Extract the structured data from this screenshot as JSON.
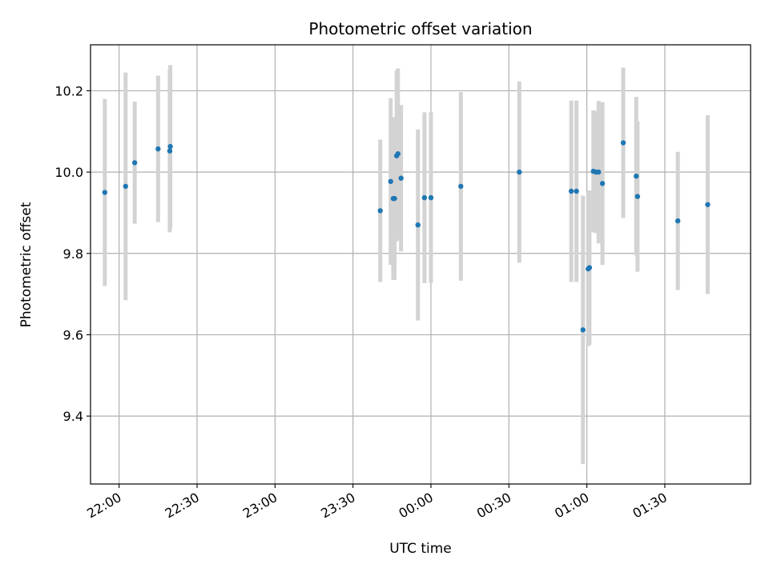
{
  "chart_data": {
    "type": "scatter",
    "title": "Photometric offset variation",
    "xlabel": "UTC time",
    "ylabel": "Photometric offset",
    "x_axis": {
      "unit": "minutes",
      "min": -131,
      "max": 123,
      "ticks": [
        {
          "value": -120,
          "label": "22:00"
        },
        {
          "value": -90,
          "label": "22:30"
        },
        {
          "value": -60,
          "label": "23:00"
        },
        {
          "value": -30,
          "label": "23:30"
        },
        {
          "value": 0,
          "label": "00:00"
        },
        {
          "value": 30,
          "label": "00:30"
        },
        {
          "value": 60,
          "label": "01:00"
        },
        {
          "value": 90,
          "label": "01:30"
        }
      ]
    },
    "y_axis": {
      "min": 9.233,
      "max": 10.313,
      "ticks": [
        {
          "value": 9.4,
          "label": "9.4"
        },
        {
          "value": 9.6,
          "label": "9.6"
        },
        {
          "value": 9.8,
          "label": "9.8"
        },
        {
          "value": 10.0,
          "label": "10.0"
        },
        {
          "value": 10.2,
          "label": "10.2"
        }
      ]
    },
    "grid": true,
    "marker_color": "#1f77b4",
    "errorbar_color": "#d3d3d3",
    "points": [
      {
        "x": -125.5,
        "y": 9.95,
        "err": 0.23
      },
      {
        "x": -117.5,
        "y": 9.965,
        "err": 0.28
      },
      {
        "x": -114.0,
        "y": 10.023,
        "err": 0.15
      },
      {
        "x": -105.0,
        "y": 10.057,
        "err": 0.18
      },
      {
        "x": -100.5,
        "y": 10.052,
        "err": 0.2
      },
      {
        "x": -100.3,
        "y": 10.063,
        "err": 0.2
      },
      {
        "x": -19.5,
        "y": 9.905,
        "err": 0.175
      },
      {
        "x": -15.5,
        "y": 9.977,
        "err": 0.205
      },
      {
        "x": -14.5,
        "y": 9.935,
        "err": 0.2
      },
      {
        "x": -14.0,
        "y": 9.935,
        "err": 0.2
      },
      {
        "x": -13.2,
        "y": 10.04,
        "err": 0.21
      },
      {
        "x": -12.7,
        "y": 10.045,
        "err": 0.21
      },
      {
        "x": -11.5,
        "y": 9.985,
        "err": 0.18
      },
      {
        "x": -5.0,
        "y": 9.87,
        "err": 0.235
      },
      {
        "x": -2.5,
        "y": 9.937,
        "err": 0.21
      },
      {
        "x": 0.0,
        "y": 9.937,
        "err": 0.21
      },
      {
        "x": 11.5,
        "y": 9.965,
        "err": 0.232
      },
      {
        "x": 34.0,
        "y": 10.0,
        "err": 0.223
      },
      {
        "x": 54.0,
        "y": 9.953,
        "err": 0.223
      },
      {
        "x": 56.0,
        "y": 9.953,
        "err": 0.223
      },
      {
        "x": 58.5,
        "y": 9.612,
        "err": 0.33
      },
      {
        "x": 60.5,
        "y": 9.762,
        "err": 0.19
      },
      {
        "x": 61.0,
        "y": 9.765,
        "err": 0.19
      },
      {
        "x": 62.5,
        "y": 10.002,
        "err": 0.15
      },
      {
        "x": 63.5,
        "y": 10.0,
        "err": 0.15
      },
      {
        "x": 64.5,
        "y": 10.0,
        "err": 0.175
      },
      {
        "x": 66.0,
        "y": 9.972,
        "err": 0.2
      },
      {
        "x": 74.0,
        "y": 10.072,
        "err": 0.185
      },
      {
        "x": 79.0,
        "y": 9.99,
        "err": 0.195
      },
      {
        "x": 79.5,
        "y": 9.94,
        "err": 0.185
      },
      {
        "x": 95.0,
        "y": 9.88,
        "err": 0.17
      },
      {
        "x": 106.5,
        "y": 9.92,
        "err": 0.22
      }
    ]
  }
}
